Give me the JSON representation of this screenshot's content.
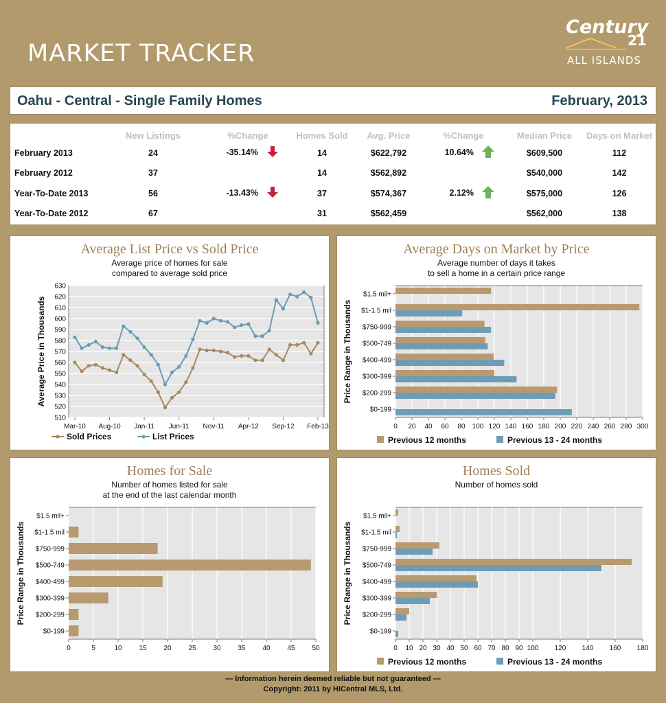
{
  "header": {
    "title": "MARKET TRACKER",
    "logo_line1": "Century",
    "logo_num": "21",
    "logo_line2": "ALL ISLANDS"
  },
  "titlebar": {
    "region": "Oahu - Central - Single Family Homes",
    "date": "February, 2013"
  },
  "stats": {
    "headers": [
      "",
      "New Listings",
      "%Change",
      "Homes Sold",
      "Avg. Price",
      "%Change",
      "Median Price",
      "Days on Market"
    ],
    "rows": [
      {
        "label": "February 2013",
        "new_listings": "24",
        "pct1": "-35.14%",
        "pct1_dir": "down",
        "homes_sold": "14",
        "avg_price": "$622,792",
        "pct2": "10.64%",
        "pct2_dir": "up",
        "median": "$609,500",
        "dom": "112"
      },
      {
        "label": "February 2012",
        "new_listings": "37",
        "pct1": "",
        "pct1_dir": "",
        "homes_sold": "14",
        "avg_price": "$562,892",
        "pct2": "",
        "pct2_dir": "",
        "median": "$540,000",
        "dom": "142"
      },
      {
        "label": "Year-To-Date 2013",
        "new_listings": "56",
        "pct1": "-13.43%",
        "pct1_dir": "down",
        "homes_sold": "37",
        "avg_price": "$574,367",
        "pct2": "2.12%",
        "pct2_dir": "up",
        "median": "$575,000",
        "dom": "126"
      },
      {
        "label": "Year-To-Date 2012",
        "new_listings": "67",
        "pct1": "",
        "pct1_dir": "",
        "homes_sold": "31",
        "avg_price": "$562,459",
        "pct2": "",
        "pct2_dir": "",
        "median": "$562,000",
        "dom": "138"
      }
    ]
  },
  "colors": {
    "tan": "#b29a6c",
    "sold_line": "#a9875e",
    "list_line": "#6a9bb4",
    "bar_prev12": "#b89a70",
    "bar_prev24": "#6f9cb5",
    "arrow_down": "#c8213a",
    "arrow_up": "#6cb35a",
    "plot_bg": "#e6e6e6",
    "title_text": "#2a4552"
  },
  "chart_data": [
    {
      "type": "line",
      "title": "Average List Price vs Sold Price",
      "subtitle": [
        "Average price of homes for sale",
        "compared to average sold price"
      ],
      "ylabel": "Average Price in Thousands",
      "xlabel": "",
      "ylim": [
        510,
        630
      ],
      "yticks": [
        510,
        520,
        530,
        540,
        550,
        560,
        570,
        580,
        590,
        600,
        610,
        620,
        630
      ],
      "xtick_labels": [
        "Mar-10",
        "Aug-10",
        "Jan-11",
        "Jun-11",
        "Nov-11",
        "Apr-12",
        "Sep-12",
        "Feb-13"
      ],
      "xtick_index": [
        0,
        5,
        10,
        15,
        20,
        25,
        30,
        35
      ],
      "grid": true,
      "legend": "bottom",
      "series": [
        {
          "name": "Sold Prices",
          "color": "#a9875e",
          "values": [
            560,
            552,
            557,
            558,
            555,
            553,
            551,
            567,
            562,
            557,
            549,
            543,
            533,
            519,
            528,
            533,
            542,
            555,
            572,
            571,
            571,
            570,
            569,
            565,
            566,
            566,
            562,
            562,
            572,
            567,
            562,
            576,
            576,
            578,
            568,
            578
          ]
        },
        {
          "name": "List Prices",
          "color": "#6a9bb4",
          "values": [
            583,
            573,
            576,
            579,
            574,
            573,
            573,
            593,
            588,
            582,
            574,
            567,
            558,
            540,
            551,
            556,
            566,
            581,
            598,
            596,
            600,
            598,
            597,
            592,
            594,
            595,
            584,
            584,
            589,
            617,
            609,
            622,
            620,
            624,
            619,
            596
          ]
        }
      ]
    },
    {
      "type": "bar",
      "orientation": "horizontal",
      "title": "Average Days on Market by Price",
      "subtitle": [
        "Average number of days it takes",
        "to sell a home in a certain price range"
      ],
      "ylabel": "Price Range in Thousands",
      "categories": [
        "$1.5 mil+",
        "$1-1.5 mil",
        "$750-999",
        "$500-749",
        "$400-499",
        "$300-399",
        "$200-299",
        "$0-199"
      ],
      "xlim": [
        0,
        300
      ],
      "xticks": [
        0,
        20,
        40,
        60,
        80,
        100,
        120,
        140,
        160,
        180,
        200,
        220,
        240,
        260,
        280,
        300
      ],
      "grid": true,
      "legend": "bottom",
      "series": [
        {
          "name": "Previous 12 months",
          "color": "#b89a70",
          "values": [
            116,
            296,
            108,
            109,
            119,
            120,
            196,
            0
          ]
        },
        {
          "name": "Previous 13 - 24 months",
          "color": "#6f9cb5",
          "values": [
            0,
            81,
            116,
            112,
            132,
            147,
            194,
            214
          ]
        }
      ]
    },
    {
      "type": "bar",
      "orientation": "horizontal",
      "title": "Homes for Sale",
      "subtitle": [
        "Number of homes listed for sale",
        "at the end of the last calendar month"
      ],
      "ylabel": "Price Range in Thousands",
      "categories": [
        "$1.5 mil+",
        "$1-1.5 mil",
        "$750-999",
        "$500-749",
        "$400-499",
        "$300-399",
        "$200-299",
        "$0-199"
      ],
      "xlim": [
        0,
        50
      ],
      "xticks": [
        0,
        5,
        10,
        15,
        20,
        25,
        30,
        35,
        40,
        45,
        50
      ],
      "grid": true,
      "legend": "none",
      "series": [
        {
          "name": "",
          "color": "#b89a70",
          "values": [
            0,
            2,
            18,
            49,
            19,
            8,
            2,
            2
          ]
        }
      ]
    },
    {
      "type": "bar",
      "orientation": "horizontal",
      "title": "Homes Sold",
      "subtitle": [
        "Number of homes sold"
      ],
      "ylabel": "Price Range in Thousands",
      "categories": [
        "$1.5 mil+",
        "$1-1.5 mil",
        "$750-999",
        "$500-749",
        "$400-499",
        "$300-399",
        "$200-299",
        "$0-199"
      ],
      "xlim": [
        0,
        180
      ],
      "xticks": [
        0,
        10,
        20,
        30,
        40,
        50,
        60,
        70,
        80,
        90,
        100,
        120,
        140,
        160,
        180
      ],
      "grid": true,
      "legend": "bottom",
      "series": [
        {
          "name": "Previous 12 months",
          "color": "#b89a70",
          "values": [
            2,
            3,
            32,
            172,
            59,
            30,
            10,
            0
          ]
        },
        {
          "name": "Previous 13 - 24 months",
          "color": "#6f9cb5",
          "values": [
            0,
            1,
            27,
            150,
            60,
            25,
            8,
            2
          ]
        }
      ]
    }
  ],
  "footer": {
    "line1": "— Information herein deemed reliable but not guaranteed —",
    "line2": "Copyright: 2011 by HiCentral MLS, Ltd."
  }
}
